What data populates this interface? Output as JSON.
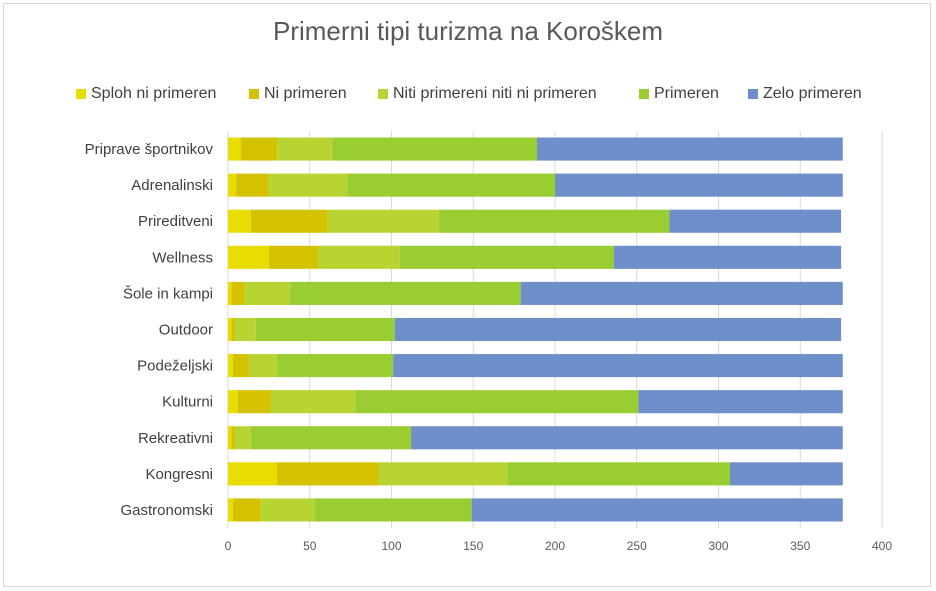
{
  "chart_data": {
    "type": "bar",
    "orientation": "horizontal",
    "stacked": true,
    "title": "Primerni tipi turizma na Koroškem",
    "xlabel": "",
    "ylabel": "",
    "xlim": [
      0,
      400
    ],
    "x_ticks": [
      0,
      50,
      100,
      150,
      200,
      250,
      300,
      350,
      400
    ],
    "grid": true,
    "legend_position": "top",
    "categories": [
      "Priprave športnikov",
      "Adrenalinski",
      "Prireditveni",
      "Wellness",
      "Šole in kampi",
      "Outdoor",
      "Podeželjski",
      "Kulturni",
      "Rekreativni",
      "Kongresni",
      "Gastronomski"
    ],
    "series": [
      {
        "name": "Sploh ni primeren",
        "color": "#e8dc00",
        "values": [
          8,
          5,
          14,
          25,
          2,
          2,
          3,
          6,
          2,
          30,
          3
        ]
      },
      {
        "name": "Ni primeren",
        "color": "#d4c200",
        "values": [
          22,
          20,
          47,
          30,
          8,
          2,
          10,
          20,
          2,
          62,
          17
        ]
      },
      {
        "name": "Niti primereni niti ni primeren",
        "color": "#b8d432",
        "values": [
          34,
          48,
          68,
          50,
          28,
          13,
          17,
          52,
          10,
          79,
          33
        ]
      },
      {
        "name": "Primeren",
        "color": "#9acd32",
        "values": [
          125,
          127,
          141,
          131,
          141,
          85,
          71,
          173,
          98,
          136,
          96
        ]
      },
      {
        "name": "Zelo primeren",
        "color": "#6e8fca",
        "values": [
          187,
          176,
          105,
          139,
          197,
          273,
          275,
          125,
          264,
          69,
          227
        ]
      }
    ]
  }
}
